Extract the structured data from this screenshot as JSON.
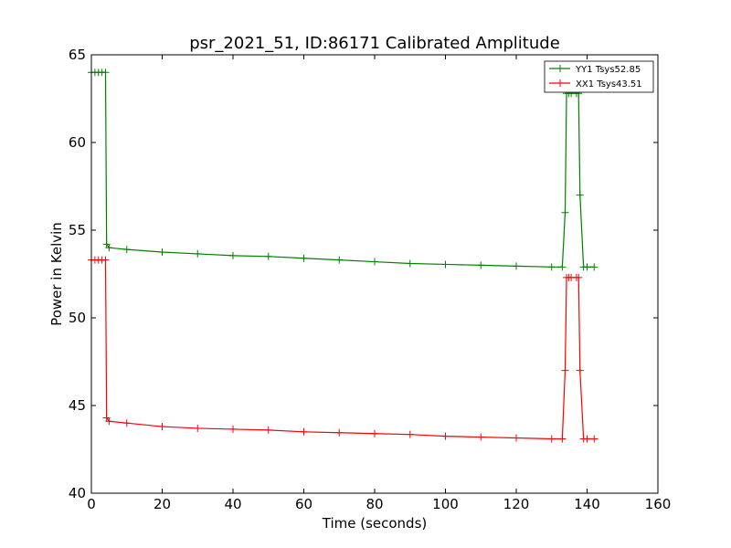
{
  "chart_data": {
    "type": "line",
    "title": "psr_2021_51, ID:86171 Calibrated Amplitude",
    "xlabel": "Time (seconds)",
    "ylabel": "Power in Kelvin",
    "xlim": [
      0,
      160
    ],
    "ylim": [
      40,
      65
    ],
    "xticks": [
      0,
      20,
      40,
      60,
      80,
      100,
      120,
      140,
      160
    ],
    "yticks": [
      40,
      45,
      50,
      55,
      60,
      65
    ],
    "grid": false,
    "legend_position": "top-right",
    "marker": "+",
    "series": [
      {
        "name": "YY1 Tsys52.85",
        "color": "#008000",
        "x": [
          0,
          1,
          2,
          3,
          4,
          4.3,
          5,
          10,
          20,
          30,
          40,
          50,
          60,
          70,
          80,
          90,
          100,
          110,
          120,
          130,
          133,
          133.8,
          134.2,
          134.8,
          135.5,
          137,
          137.6,
          138,
          139,
          140,
          142
        ],
        "y": [
          64.0,
          64.0,
          64.0,
          64.0,
          64.0,
          54.2,
          54.0,
          53.9,
          53.75,
          53.65,
          53.55,
          53.5,
          53.4,
          53.3,
          53.2,
          53.1,
          53.05,
          53.0,
          52.95,
          52.9,
          52.9,
          56.0,
          62.8,
          62.8,
          62.8,
          62.8,
          62.8,
          57.0,
          52.9,
          52.9,
          52.9
        ]
      },
      {
        "name": "XX1 Tsys43.51",
        "color": "#ff0000",
        "x": [
          0,
          1,
          2,
          3,
          4,
          4.3,
          5,
          10,
          20,
          30,
          40,
          50,
          60,
          70,
          80,
          90,
          100,
          110,
          120,
          130,
          133,
          133.8,
          134.2,
          134.8,
          135.5,
          137,
          137.6,
          138,
          139,
          140,
          142
        ],
        "y": [
          53.3,
          53.3,
          53.3,
          53.3,
          53.3,
          44.3,
          44.1,
          44.0,
          43.8,
          43.7,
          43.65,
          43.6,
          43.5,
          43.45,
          43.4,
          43.35,
          43.25,
          43.2,
          43.15,
          43.1,
          43.1,
          47.0,
          52.3,
          52.3,
          52.3,
          52.3,
          52.3,
          47.0,
          43.1,
          43.1,
          43.1
        ]
      }
    ]
  }
}
